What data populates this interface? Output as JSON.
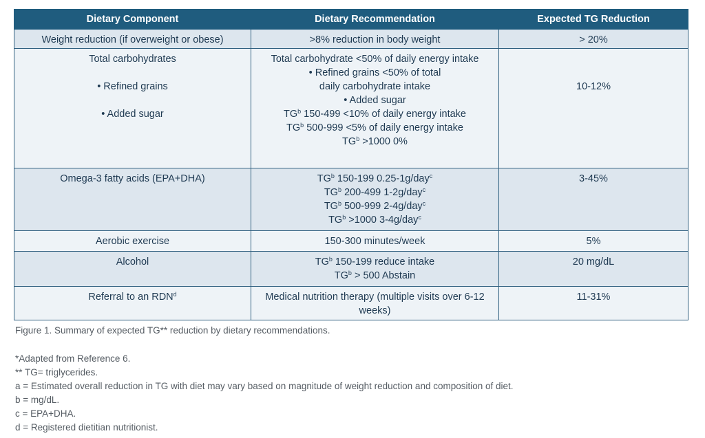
{
  "headers": [
    "Dietary Component",
    "Dietary Recommendation",
    "Expected TG Reduction"
  ],
  "rows": [
    {
      "component": "Weight reduction (if overweight or obese)",
      "recommendation": ">8% reduction in body weight",
      "reduction": "> 20%"
    },
    {
      "component": "Total carbohydrates",
      "component_sub": [
        "• Refined grains",
        "• Added sugar"
      ],
      "recommendation_lines": [
        "Total carbohydrate <50% of daily energy intake",
        "• Refined grains <50% of total",
        "daily carbohydrate intake",
        "• Added sugar"
      ],
      "tg_lines": [
        " 150-499 <10% of daily energy intake",
        " 500-999 <5% of daily energy intake",
        " >1000 0%"
      ],
      "reduction": "10-12%"
    },
    {
      "component": "Omega-3 fatty acids (EPA+DHA)",
      "tg_lines": [
        " 150-199 0.25-1g/day",
        " 200-499 1-2g/day",
        " 500-999 2-4g/day",
        " >1000 3-4g/day"
      ],
      "reduction": "3-45%"
    },
    {
      "component": "Aerobic exercise",
      "recommendation": "150-300 minutes/week",
      "reduction": "5%"
    },
    {
      "component": "Alcohol",
      "tg_lines": [
        " 150-199 reduce intake",
        " > 500 Abstain"
      ],
      "reduction": "20 mg/dL"
    },
    {
      "component": "Referral to an RDN",
      "recommendation": "Medical nutrition therapy (multiple visits over 6-12 weeks)",
      "reduction": "11-31%"
    }
  ],
  "tg_prefix": "TG",
  "sup_b": "b",
  "sup_c": "c",
  "sup_d": "d",
  "caption": "Figure 1. Summary of expected TG** reduction by dietary recommendations.",
  "footnotes": [
    "*Adapted from Reference 6.",
    "** TG= triglycerides.",
    "a = Estimated overall reduction in TG with diet may vary based on magnitude of weight reduction and composition of diet.",
    "b = mg/dL.",
    "c = EPA+DHA.",
    "d = Registered dietitian nutritionist."
  ]
}
